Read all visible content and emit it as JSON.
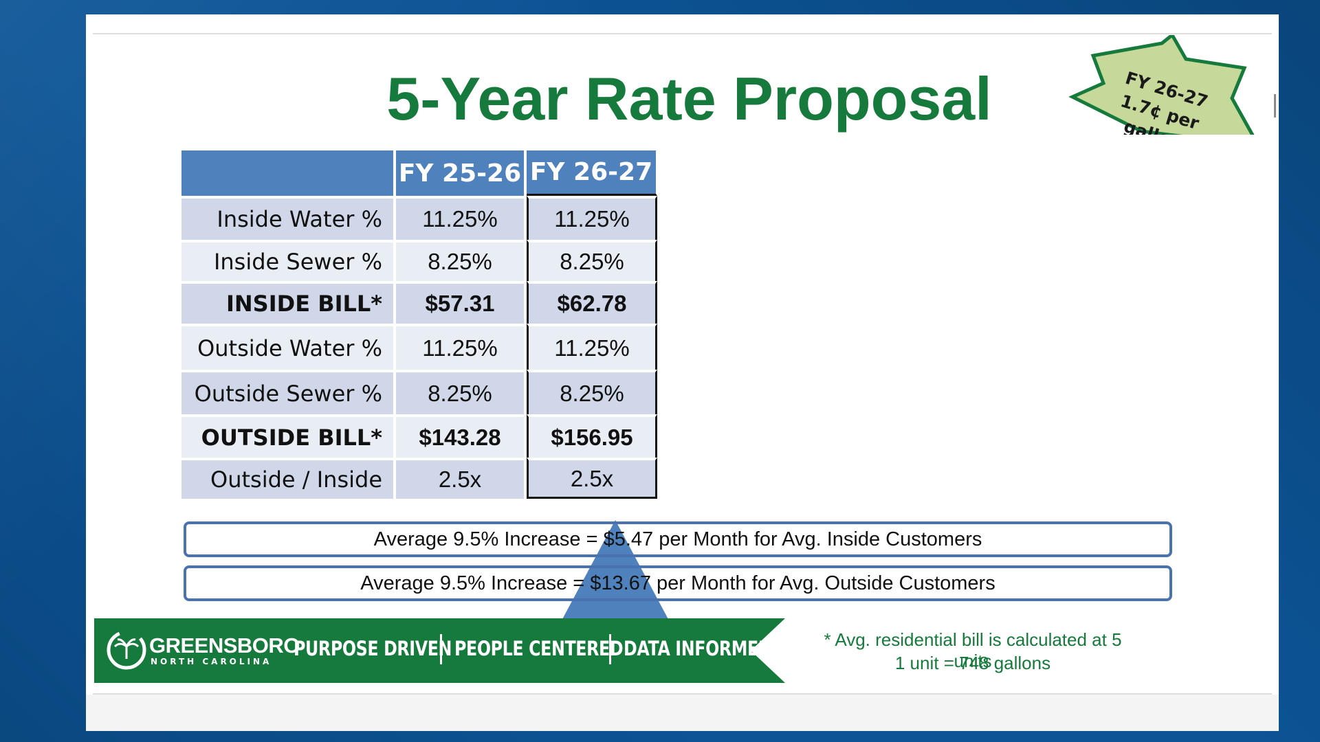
{
  "slide": {
    "title": "5-Year Rate Proposal",
    "badge": {
      "line1": "FY 26-27",
      "line2": "1.7¢ per",
      "line3": "gallon"
    },
    "table": {
      "headers": [
        "",
        "FY 25-26",
        "FY 26-27"
      ],
      "rows": [
        {
          "label": "Inside Water %",
          "values": [
            "11.25%",
            "11.25%"
          ]
        },
        {
          "label": "Inside Sewer %",
          "values": [
            "8.25%",
            "8.25%"
          ]
        },
        {
          "label": "INSIDE BILL*",
          "values": [
            "$57.31",
            "$62.78"
          ]
        },
        {
          "label": "Outside Water %",
          "values": [
            "11.25%",
            "11.25%"
          ]
        },
        {
          "label": "Outside Sewer %",
          "values": [
            "8.25%",
            "8.25%"
          ]
        },
        {
          "label": "OUTSIDE BILL*",
          "values": [
            "$143.28",
            "$156.95"
          ]
        },
        {
          "label": "Outside / Inside",
          "values": [
            "2.5x",
            "2.5x"
          ]
        }
      ]
    },
    "callouts": [
      "Average 9.5% Increase = $5.47 per Month for Avg. Inside Customers",
      "Average 9.5% Increase = $13.67 per Month for Avg. Outside Customers"
    ],
    "footer": {
      "logo_main": "GREENSBORO",
      "logo_sub": "NORTH CAROLINA",
      "slogans": [
        "PURPOSE DRIVEN",
        "PEOPLE CENTERED",
        "DATA INFORMED"
      ],
      "footnote_line1": "* Avg. residential bill is calculated at 5 units",
      "footnote_line2": "1 unit = 748 gallons"
    },
    "colors": {
      "title_green": "#157a3b",
      "header_blue": "#4f81bd",
      "row_dark": "#cfd7e8",
      "row_light": "#e9edf4",
      "badge_fill": "#c6d89a",
      "banner_green": "#157a3b",
      "background_blue": "#0c5496"
    }
  }
}
